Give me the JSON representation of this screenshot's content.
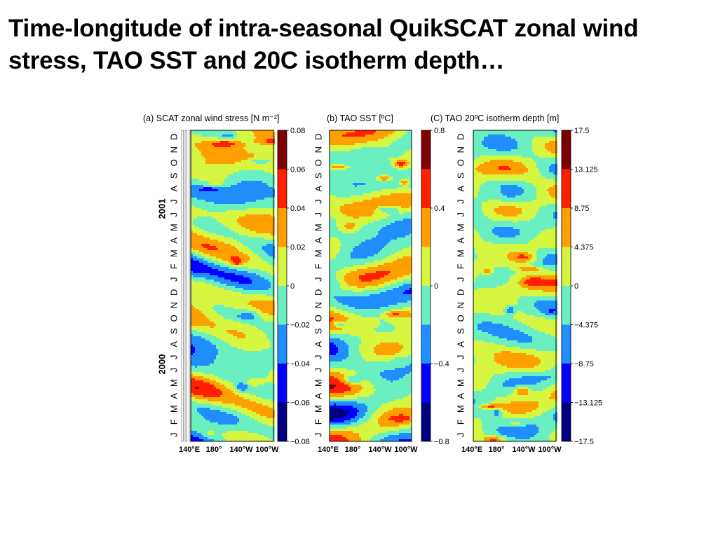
{
  "slide": {
    "title": "Time-longitude of intra-seasonal QuikSCAT zonal wind stress, TAO SST and 20C isotherm depth…"
  },
  "chart_data": [
    {
      "type": "heatmap",
      "title": "(a) SCAT zonal wind stress [N m⁻²]",
      "x_ticks": [
        "140°E",
        "180°",
        "140°W",
        "100°W"
      ],
      "y_ticks": [
        "J",
        "F",
        "M",
        "A",
        "M",
        "J",
        "J",
        "A",
        "S",
        "O",
        "N",
        "D",
        "J",
        "F",
        "M",
        "A",
        "M",
        "J",
        "J",
        "A",
        "S",
        "O",
        "N",
        "D"
      ],
      "year_labels": [
        "2000",
        "2001"
      ],
      "colorbar_ticks": [
        "0.08",
        "0.06",
        "0.04",
        "0.02",
        "0",
        "−0.02",
        "−0.04",
        "−0.06",
        "−0.08"
      ],
      "colorbar_range": [
        -0.08,
        0.08
      ]
    },
    {
      "type": "heatmap",
      "title": "(b) TAO SST [ºC]",
      "x_ticks": [
        "140°E",
        "180°",
        "140°W",
        "100°W"
      ],
      "y_ticks": [
        "J",
        "F",
        "M",
        "A",
        "M",
        "J",
        "J",
        "A",
        "S",
        "O",
        "N",
        "D",
        "J",
        "F",
        "M",
        "A",
        "M",
        "J",
        "J",
        "A",
        "S",
        "O",
        "N",
        "D"
      ],
      "colorbar_ticks": [
        "0.8",
        "0.4",
        "0",
        "−0.4",
        "−0.8"
      ],
      "colorbar_range": [
        -0.8,
        0.8
      ]
    },
    {
      "type": "heatmap",
      "title": "(C) TAO 20ºC isotherm depth [m]",
      "x_ticks": [
        "140°E",
        "180°",
        "140°W",
        "100°W"
      ],
      "y_ticks": [
        "J",
        "F",
        "M",
        "A",
        "M",
        "J",
        "J",
        "A",
        "S",
        "O",
        "N",
        "D",
        "J",
        "F",
        "M",
        "A",
        "M",
        "J",
        "J",
        "A",
        "S",
        "O",
        "N",
        "D"
      ],
      "colorbar_ticks": [
        "17.5",
        "13.125",
        "8.75",
        "4.375",
        "0",
        "−4.375",
        "−8.75",
        "−13.125",
        "−17.5"
      ],
      "colorbar_range": [
        -17.5,
        17.5
      ]
    }
  ],
  "colors": {
    "scale": [
      "#00007f",
      "#0000ff",
      "#1f8fff",
      "#6af0c0",
      "#d6f540",
      "#ffa000",
      "#ff2000",
      "#7f0000"
    ]
  }
}
